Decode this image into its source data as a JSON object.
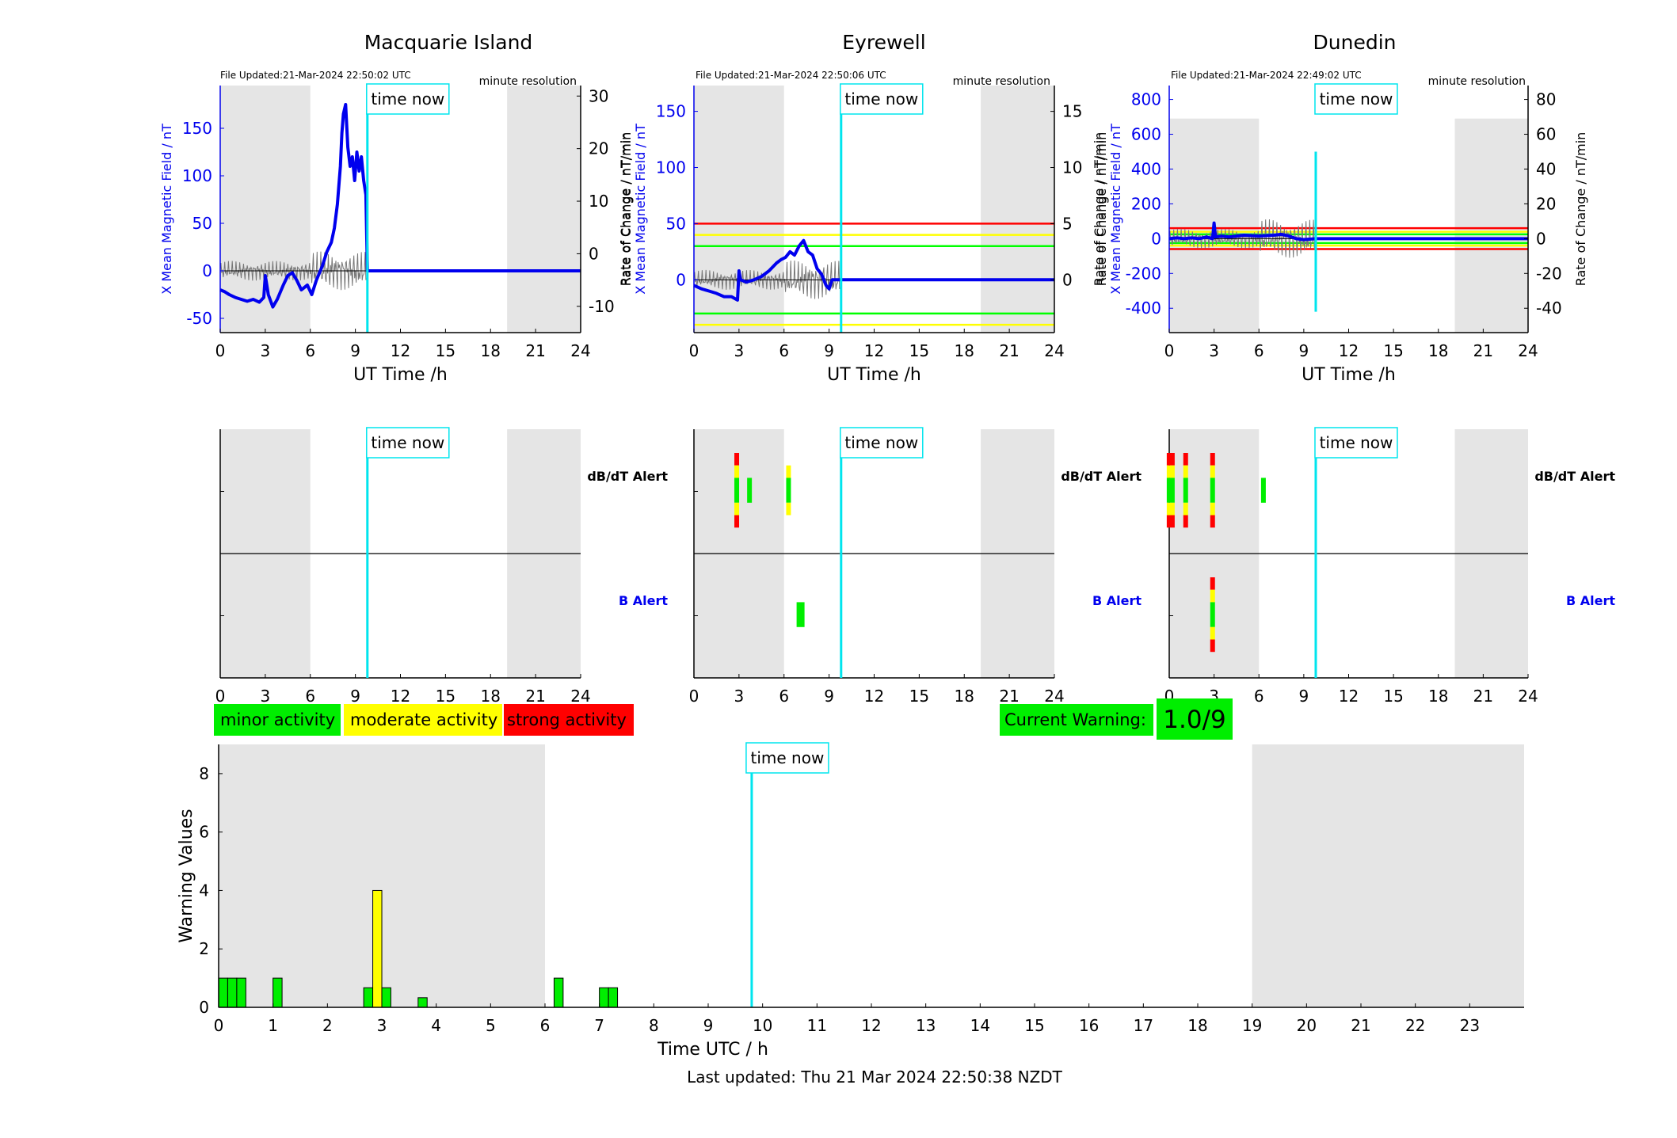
{
  "chart_data": [
    {
      "type": "line",
      "title": "Macquarie Island",
      "file_updated": "File Updated:21-Mar-2024 22:50:02 UTC",
      "resolution": "minute resolution",
      "xlabel": "UT Time /h",
      "ylabel_left": "X Mean Magnetic Field / nT",
      "ylabel_right": "Rate of Change / nT/min",
      "xlim": [
        0,
        24
      ],
      "xticks": [
        0,
        3,
        6,
        9,
        12,
        15,
        18,
        21,
        24
      ],
      "ylim": [
        -65,
        195
      ],
      "yticks": [
        -50,
        0,
        50,
        100,
        150
      ],
      "ylim_right": [
        -15,
        32
      ],
      "yticks_right": [
        -10,
        0,
        10,
        20,
        30
      ],
      "shaded_hours": [
        [
          0,
          6
        ],
        [
          19.1,
          24
        ]
      ],
      "time_now": 9.8,
      "time_now_label": "time now",
      "thresholds": [],
      "series": [
        {
          "x": [
            0,
            0.3,
            0.6,
            1.0,
            1.4,
            1.8,
            2.2,
            2.6,
            2.9,
            3.0,
            3.2,
            3.5,
            3.8,
            4.2,
            4.5,
            4.8,
            5.1,
            5.4,
            5.8,
            6.1,
            6.4,
            6.8,
            7.1,
            7.4,
            7.6,
            7.8,
            8.0,
            8.1,
            8.2,
            8.35,
            8.5,
            8.65,
            8.8,
            8.95,
            9.1,
            9.25,
            9.4,
            9.55,
            9.7,
            9.8,
            10.2,
            12,
            15,
            18,
            21,
            24
          ],
          "values": [
            -20,
            -22,
            -25,
            -28,
            -30,
            -32,
            -30,
            -33,
            -28,
            -5,
            -25,
            -38,
            -30,
            -15,
            -5,
            -2,
            -10,
            -20,
            -15,
            -25,
            -10,
            5,
            20,
            30,
            45,
            70,
            110,
            145,
            165,
            175,
            130,
            110,
            120,
            95,
            125,
            105,
            120,
            95,
            80,
            0,
            0,
            0,
            0,
            0,
            0,
            0
          ]
        }
      ]
    },
    {
      "type": "line",
      "title": "Eyrewell",
      "file_updated": "File Updated:21-Mar-2024 22:50:06 UTC",
      "resolution": "minute resolution",
      "xlabel": "UT Time /h",
      "ylabel_left": "X Mean Magnetic Field / nT",
      "ylabel_right": "Rate of Change / nT/min",
      "xlim": [
        0,
        24
      ],
      "xticks": [
        0,
        3,
        6,
        9,
        12,
        15,
        18,
        21,
        24
      ],
      "ylim": [
        -47,
        173
      ],
      "yticks": [
        0,
        50,
        100,
        150
      ],
      "ylim_right": [
        -4.7,
        17.3
      ],
      "yticks_right": [
        0,
        5,
        10,
        15
      ],
      "shaded_hours": [
        [
          0,
          6
        ],
        [
          19.1,
          24
        ]
      ],
      "time_now": 9.8,
      "time_now_label": "time now",
      "thresholds": [
        {
          "value": 50,
          "color": "#ff0000"
        },
        {
          "value": 40,
          "color": "#ffff00"
        },
        {
          "value": 30,
          "color": "#00ff00"
        },
        {
          "value": -30,
          "color": "#00ff00"
        },
        {
          "value": -40,
          "color": "#ffff00"
        }
      ],
      "series": [
        {
          "x": [
            0,
            0.5,
            1.0,
            1.5,
            2.0,
            2.5,
            2.9,
            3.0,
            3.1,
            3.5,
            4.0,
            4.5,
            5.0,
            5.5,
            5.8,
            6.1,
            6.4,
            6.7,
            7.0,
            7.3,
            7.6,
            7.9,
            8.2,
            8.5,
            8.8,
            9.0,
            9.2,
            9.8,
            12,
            15,
            18,
            21,
            24
          ],
          "values": [
            -5,
            -8,
            -10,
            -12,
            -15,
            -15,
            -18,
            8,
            0,
            -2,
            0,
            3,
            8,
            15,
            18,
            20,
            25,
            22,
            30,
            35,
            25,
            22,
            10,
            5,
            -5,
            -8,
            0,
            0,
            0,
            0,
            0,
            0,
            0
          ]
        }
      ]
    },
    {
      "type": "line",
      "title": "Dunedin",
      "file_updated": "File Updated:21-Mar-2024 22:49:02 UTC",
      "resolution": "minute resolution",
      "xlabel": "UT Time /h",
      "ylabel_left": "X Mean Magnetic Field / nT",
      "ylabel_right": "Rate of Change / nT/min",
      "xlim": [
        0,
        24
      ],
      "xticks": [
        0,
        3,
        6,
        9,
        12,
        15,
        18,
        21,
        24
      ],
      "ylim": [
        -540,
        880
      ],
      "yticks": [
        -400,
        -200,
        0,
        200,
        400,
        600,
        800
      ],
      "ylim_right": [
        -54,
        88
      ],
      "yticks_right": [
        -40,
        -20,
        0,
        20,
        40,
        60,
        80
      ],
      "shaded_hours": [
        [
          0,
          6
        ],
        [
          19.1,
          24
        ]
      ],
      "shaded_top": 690,
      "time_now": 9.8,
      "time_now_label": "time now",
      "time_now_range": [
        -420,
        500
      ],
      "thresholds": [
        {
          "value": 60,
          "color": "#ff0000"
        },
        {
          "value": 40,
          "color": "#ffff00"
        },
        {
          "value": 25,
          "color": "#00ff00"
        },
        {
          "value": -25,
          "color": "#00ff00"
        },
        {
          "value": -40,
          "color": "#ffff00"
        },
        {
          "value": -60,
          "color": "#ff0000"
        }
      ],
      "series": [
        {
          "x": [
            0,
            0.5,
            1.0,
            1.5,
            2.0,
            2.5,
            2.9,
            3.0,
            3.1,
            3.5,
            4.0,
            5.0,
            6.0,
            7.0,
            7.5,
            8.0,
            8.5,
            9.0,
            9.8,
            12,
            15,
            18,
            21,
            24
          ],
          "values": [
            0,
            5,
            0,
            5,
            0,
            10,
            0,
            90,
            10,
            15,
            10,
            20,
            15,
            20,
            25,
            15,
            0,
            -5,
            0,
            0,
            0,
            0,
            0,
            0
          ]
        }
      ]
    },
    {
      "type": "bar",
      "ylabel": "Warning Values",
      "xlabel": "Time UTC / h",
      "xlim": [
        0,
        24
      ],
      "xticks": [
        0,
        1,
        2,
        3,
        4,
        5,
        6,
        7,
        8,
        9,
        10,
        11,
        12,
        13,
        14,
        15,
        16,
        17,
        18,
        19,
        20,
        21,
        22,
        23
      ],
      "ylim": [
        0,
        9
      ],
      "yticks": [
        0,
        2,
        4,
        6,
        8
      ],
      "shaded_hours": [
        [
          0,
          6
        ],
        [
          19,
          24
        ]
      ],
      "time_now": 9.8,
      "time_now_label": "time now",
      "bars": [
        {
          "x": 0.083,
          "value": 1,
          "color": "#00ee00"
        },
        {
          "x": 0.25,
          "value": 1,
          "color": "#00ee00"
        },
        {
          "x": 0.417,
          "value": 1,
          "color": "#00ee00"
        },
        {
          "x": 1.083,
          "value": 1,
          "color": "#00ee00"
        },
        {
          "x": 2.75,
          "value": 0.67,
          "color": "#00ee00"
        },
        {
          "x": 2.917,
          "value": 4,
          "color": "#ffff00"
        },
        {
          "x": 3.083,
          "value": 0.67,
          "color": "#00ee00"
        },
        {
          "x": 3.75,
          "value": 0.33,
          "color": "#00ee00"
        },
        {
          "x": 6.25,
          "value": 1,
          "color": "#00ee00"
        },
        {
          "x": 7.083,
          "value": 0.67,
          "color": "#00ee00"
        },
        {
          "x": 7.25,
          "value": 0.67,
          "color": "#00ee00"
        }
      ]
    }
  ],
  "alerts": {
    "labels": {
      "dbdt": "dB/dT Alert",
      "b": "B Alert"
    },
    "xticks": [
      0,
      3,
      6,
      9,
      12,
      15,
      18,
      21,
      24
    ],
    "time_now": 9.8,
    "time_now_label": "time now",
    "panels": [
      {
        "name": "Macquarie Island",
        "dbdt": [],
        "b": []
      },
      {
        "name": "Eyrewell",
        "dbdt": [
          {
            "x": 2.85,
            "bands": [
              {
                "y0": 0.0,
                "y1": 0.1,
                "c": "red"
              },
              {
                "y0": 0.1,
                "y1": 0.2,
                "c": "yellow"
              },
              {
                "y0": 0.2,
                "y1": 0.4,
                "c": "green"
              },
              {
                "y0": 0.4,
                "y1": 0.5,
                "c": "yellow"
              },
              {
                "y0": 0.5,
                "y1": 0.6,
                "c": "red"
              }
            ]
          },
          {
            "x": 3.7,
            "bands": [
              {
                "y0": 0.2,
                "y1": 0.4,
                "c": "green"
              }
            ]
          },
          {
            "x": 6.3,
            "bands": [
              {
                "y0": 0.1,
                "y1": 0.2,
                "c": "yellow"
              },
              {
                "y0": 0.2,
                "y1": 0.4,
                "c": "green"
              },
              {
                "y0": 0.4,
                "y1": 0.5,
                "c": "yellow"
              }
            ]
          }
        ],
        "b": [
          {
            "x": 7.1,
            "bands": [
              {
                "y0": 0.2,
                "y1": 0.4,
                "c": "green"
              }
            ],
            "wide": true
          }
        ]
      },
      {
        "name": "Dunedin",
        "dbdt": [
          {
            "x": 0.1,
            "bands": [
              {
                "y0": 0.0,
                "y1": 0.1,
                "c": "red"
              },
              {
                "y0": 0.1,
                "y1": 0.2,
                "c": "yellow"
              },
              {
                "y0": 0.2,
                "y1": 0.4,
                "c": "green"
              },
              {
                "y0": 0.4,
                "y1": 0.5,
                "c": "yellow"
              },
              {
                "y0": 0.5,
                "y1": 0.6,
                "c": "red"
              }
            ],
            "wide": true
          },
          {
            "x": 1.1,
            "bands": [
              {
                "y0": 0.0,
                "y1": 0.1,
                "c": "red"
              },
              {
                "y0": 0.1,
                "y1": 0.2,
                "c": "yellow"
              },
              {
                "y0": 0.2,
                "y1": 0.4,
                "c": "green"
              },
              {
                "y0": 0.4,
                "y1": 0.5,
                "c": "yellow"
              },
              {
                "y0": 0.5,
                "y1": 0.6,
                "c": "red"
              }
            ]
          },
          {
            "x": 2.9,
            "bands": [
              {
                "y0": 0.0,
                "y1": 0.1,
                "c": "red"
              },
              {
                "y0": 0.1,
                "y1": 0.2,
                "c": "yellow"
              },
              {
                "y0": 0.2,
                "y1": 0.4,
                "c": "green"
              },
              {
                "y0": 0.4,
                "y1": 0.5,
                "c": "yellow"
              },
              {
                "y0": 0.5,
                "y1": 0.6,
                "c": "red"
              }
            ]
          },
          {
            "x": 6.3,
            "bands": [
              {
                "y0": 0.2,
                "y1": 0.4,
                "c": "green"
              }
            ]
          }
        ],
        "b": [
          {
            "x": 2.9,
            "bands": [
              {
                "y0": 0.0,
                "y1": 0.1,
                "c": "red"
              },
              {
                "y0": 0.1,
                "y1": 0.2,
                "c": "yellow"
              },
              {
                "y0": 0.2,
                "y1": 0.4,
                "c": "green"
              },
              {
                "y0": 0.4,
                "y1": 0.5,
                "c": "yellow"
              },
              {
                "y0": 0.5,
                "y1": 0.6,
                "c": "red"
              }
            ]
          }
        ]
      }
    ]
  },
  "legend": {
    "minor": "minor activity",
    "moderate": "moderate activity",
    "strong": "strong activity"
  },
  "current_warning": {
    "label": "Current Warning:",
    "value": "1.0/9"
  },
  "footer": {
    "last_updated": "Last updated: Thu 21 Mar 2024 22:50:38 NZDT"
  },
  "colors": {
    "field_line": "#0000ee",
    "rate_line": "#777777",
    "time_now": "#00e5ee",
    "shade": "#e5e5e5",
    "minor": "#00ee00",
    "moderate": "#ffff00",
    "strong": "#ff0000",
    "axis_blue": "#0000ee"
  }
}
